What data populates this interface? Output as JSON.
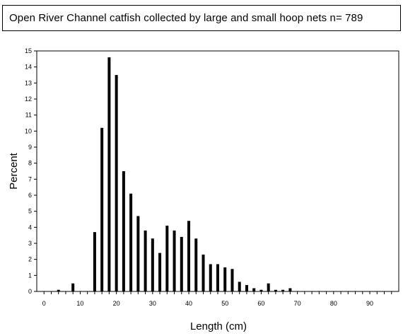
{
  "title": "Open River Channel catfish collected by large and small hoop nets n= 789",
  "chart_data": {
    "type": "bar",
    "xlabel": "Length (cm)",
    "ylabel": "Percent",
    "xlim": [
      -2,
      98
    ],
    "ylim": [
      0,
      15
    ],
    "x_ticks": [
      "0",
      "10",
      "20",
      "30",
      "40",
      "50",
      "60",
      "70",
      "80",
      "90"
    ],
    "y_ticks": [
      "0",
      "1",
      "2",
      "3",
      "4",
      "5",
      "6",
      "7",
      "8",
      "9",
      "10",
      "11",
      "12",
      "13",
      "14",
      "15"
    ],
    "grid": false,
    "bar_color": "#000000",
    "x": [
      4,
      8,
      14,
      16,
      18,
      20,
      22,
      24,
      26,
      28,
      30,
      32,
      34,
      36,
      38,
      40,
      42,
      44,
      46,
      48,
      50,
      52,
      54,
      56,
      58,
      60,
      62,
      64,
      66,
      68
    ],
    "values": [
      0.1,
      0.5,
      3.7,
      10.2,
      14.6,
      13.5,
      7.5,
      6.1,
      4.7,
      3.8,
      3.3,
      2.4,
      4.1,
      3.8,
      3.4,
      4.4,
      3.3,
      2.3,
      1.7,
      1.7,
      1.5,
      1.4,
      0.6,
      0.4,
      0.2,
      0.1,
      0.5,
      0.1,
      0.1,
      0.2
    ]
  }
}
